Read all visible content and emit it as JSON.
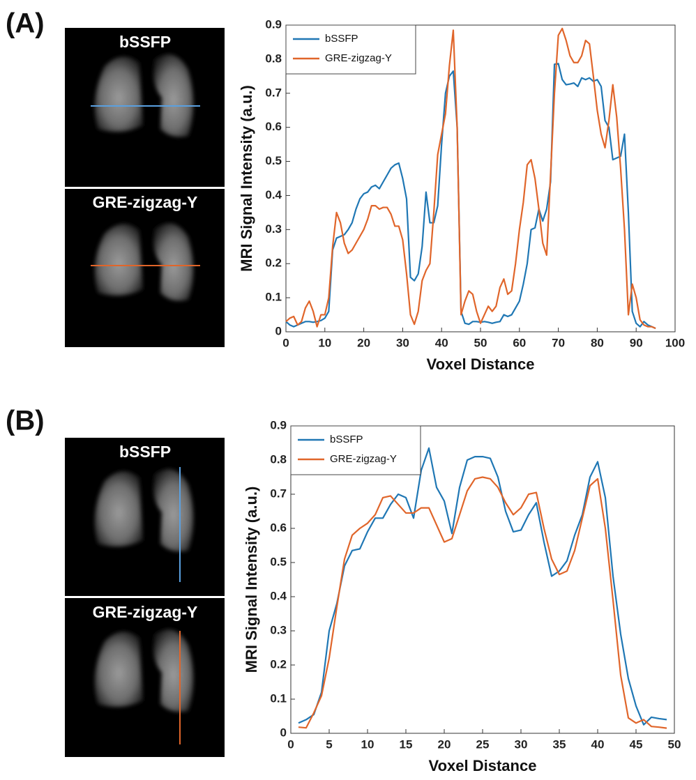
{
  "panels": [
    {
      "label": "(A)",
      "images": [
        {
          "label": "bSSFP"
        },
        {
          "label": "GRE-zigzag-Y"
        }
      ]
    },
    {
      "label": "(B)",
      "images": [
        {
          "label": "bSSFP"
        },
        {
          "label": "GRE-zigzag-Y"
        }
      ]
    }
  ],
  "chart_data": [
    {
      "type": "line",
      "xlabel": "Voxel Distance",
      "ylabel": "MRI Signal Intensity (a.u.)",
      "legend": "upper left",
      "grid": false,
      "xlim": [
        0,
        100
      ],
      "xticks": [
        0,
        10,
        20,
        30,
        40,
        50,
        60,
        70,
        80,
        90,
        100
      ],
      "ylim": [
        0,
        0.9
      ],
      "yticks": [
        0,
        0.1,
        0.2,
        0.3,
        0.4,
        0.5,
        0.6,
        0.7,
        0.8,
        0.9
      ],
      "x": [
        0,
        1,
        2,
        3,
        4,
        5,
        6,
        7,
        8,
        9,
        10,
        11,
        12,
        13,
        14,
        15,
        16,
        17,
        18,
        19,
        20,
        21,
        22,
        23,
        24,
        25,
        26,
        27,
        28,
        29,
        30,
        31,
        32,
        33,
        34,
        35,
        36,
        37,
        38,
        39,
        40,
        41,
        42,
        43,
        44,
        45,
        46,
        47,
        48,
        49,
        50,
        51,
        52,
        53,
        54,
        55,
        56,
        57,
        58,
        59,
        60,
        61,
        62,
        63,
        64,
        65,
        66,
        67,
        68,
        69,
        70,
        71,
        72,
        73,
        74,
        75,
        76,
        77,
        78,
        79,
        80,
        81,
        82,
        83,
        84,
        85,
        86,
        87,
        88,
        89,
        90,
        91,
        92,
        93,
        94,
        95
      ],
      "series": [
        {
          "name": "bSSFP",
          "color": "#1f77b4",
          "values": [
            0.03,
            0.02,
            0.015,
            0.02,
            0.025,
            0.03,
            0.03,
            0.028,
            0.03,
            0.033,
            0.04,
            0.06,
            0.24,
            0.275,
            0.28,
            0.285,
            0.3,
            0.32,
            0.36,
            0.39,
            0.405,
            0.41,
            0.425,
            0.43,
            0.42,
            0.44,
            0.46,
            0.48,
            0.49,
            0.495,
            0.45,
            0.39,
            0.16,
            0.15,
            0.17,
            0.25,
            0.41,
            0.32,
            0.32,
            0.37,
            0.55,
            0.7,
            0.75,
            0.765,
            0.6,
            0.06,
            0.025,
            0.022,
            0.03,
            0.03,
            0.028,
            0.03,
            0.028,
            0.025,
            0.028,
            0.03,
            0.05,
            0.045,
            0.05,
            0.07,
            0.09,
            0.14,
            0.2,
            0.3,
            0.305,
            0.36,
            0.325,
            0.36,
            0.44,
            0.785,
            0.787,
            0.74,
            0.725,
            0.727,
            0.73,
            0.72,
            0.745,
            0.74,
            0.745,
            0.735,
            0.74,
            0.72,
            0.62,
            0.6,
            0.505,
            0.51,
            0.515,
            0.58,
            0.35,
            0.06,
            0.025,
            0.015,
            0.03,
            0.02,
            0.015,
            0.01
          ]
        },
        {
          "name": "GRE-zigzag-Y",
          "color": "#e0652a",
          "values": [
            0.03,
            0.04,
            0.045,
            0.02,
            0.03,
            0.07,
            0.09,
            0.06,
            0.015,
            0.05,
            0.05,
            0.1,
            0.25,
            0.35,
            0.32,
            0.26,
            0.23,
            0.24,
            0.26,
            0.28,
            0.3,
            0.33,
            0.37,
            0.37,
            0.36,
            0.365,
            0.365,
            0.345,
            0.31,
            0.31,
            0.27,
            0.17,
            0.05,
            0.022,
            0.06,
            0.15,
            0.18,
            0.2,
            0.35,
            0.52,
            0.58,
            0.64,
            0.78,
            0.885,
            0.6,
            0.05,
            0.09,
            0.12,
            0.11,
            0.06,
            0.025,
            0.05,
            0.075,
            0.06,
            0.075,
            0.13,
            0.155,
            0.11,
            0.12,
            0.2,
            0.3,
            0.38,
            0.49,
            0.505,
            0.45,
            0.36,
            0.26,
            0.225,
            0.46,
            0.7,
            0.87,
            0.89,
            0.855,
            0.81,
            0.79,
            0.79,
            0.81,
            0.855,
            0.845,
            0.75,
            0.65,
            0.58,
            0.54,
            0.62,
            0.725,
            0.63,
            0.48,
            0.3,
            0.05,
            0.14,
            0.1,
            0.035,
            0.02,
            0.015,
            0.015,
            0.01
          ]
        }
      ]
    },
    {
      "type": "line",
      "xlabel": "Voxel Distance",
      "ylabel": "MRI Signal Intensity (a.u.)",
      "legend": "upper left",
      "grid": false,
      "xlim": [
        0,
        50
      ],
      "xticks": [
        0,
        5,
        10,
        15,
        20,
        25,
        30,
        35,
        40,
        45,
        50
      ],
      "ylim": [
        0,
        0.9
      ],
      "yticks": [
        0,
        0.1,
        0.2,
        0.3,
        0.4,
        0.5,
        0.6,
        0.7,
        0.8,
        0.9
      ],
      "x": [
        1,
        2,
        3,
        4,
        5,
        6,
        7,
        8,
        9,
        10,
        11,
        12,
        13,
        14,
        15,
        16,
        17,
        18,
        19,
        20,
        21,
        22,
        23,
        24,
        25,
        26,
        27,
        28,
        29,
        30,
        31,
        32,
        33,
        34,
        35,
        36,
        37,
        38,
        39,
        40,
        41,
        42,
        43,
        44,
        45,
        46,
        47,
        48,
        49
      ],
      "series": [
        {
          "name": "bSSFP",
          "color": "#1f77b4",
          "values": [
            0.03,
            0.04,
            0.055,
            0.12,
            0.3,
            0.38,
            0.49,
            0.535,
            0.54,
            0.59,
            0.63,
            0.63,
            0.67,
            0.7,
            0.69,
            0.63,
            0.77,
            0.835,
            0.72,
            0.68,
            0.585,
            0.72,
            0.8,
            0.81,
            0.81,
            0.805,
            0.75,
            0.65,
            0.59,
            0.595,
            0.64,
            0.675,
            0.56,
            0.46,
            0.475,
            0.505,
            0.58,
            0.64,
            0.75,
            0.795,
            0.69,
            0.46,
            0.29,
            0.16,
            0.08,
            0.025,
            0.047,
            0.043,
            0.04
          ]
        },
        {
          "name": "GRE-zigzag-Y",
          "color": "#e0652a",
          "values": [
            0.018,
            0.016,
            0.06,
            0.11,
            0.22,
            0.37,
            0.51,
            0.58,
            0.6,
            0.615,
            0.64,
            0.69,
            0.695,
            0.67,
            0.645,
            0.645,
            0.66,
            0.66,
            0.61,
            0.56,
            0.57,
            0.64,
            0.71,
            0.745,
            0.75,
            0.745,
            0.72,
            0.675,
            0.64,
            0.66,
            0.7,
            0.705,
            0.6,
            0.51,
            0.465,
            0.475,
            0.535,
            0.63,
            0.725,
            0.745,
            0.6,
            0.39,
            0.17,
            0.045,
            0.03,
            0.04,
            0.02,
            0.018,
            0.015
          ]
        }
      ]
    }
  ]
}
